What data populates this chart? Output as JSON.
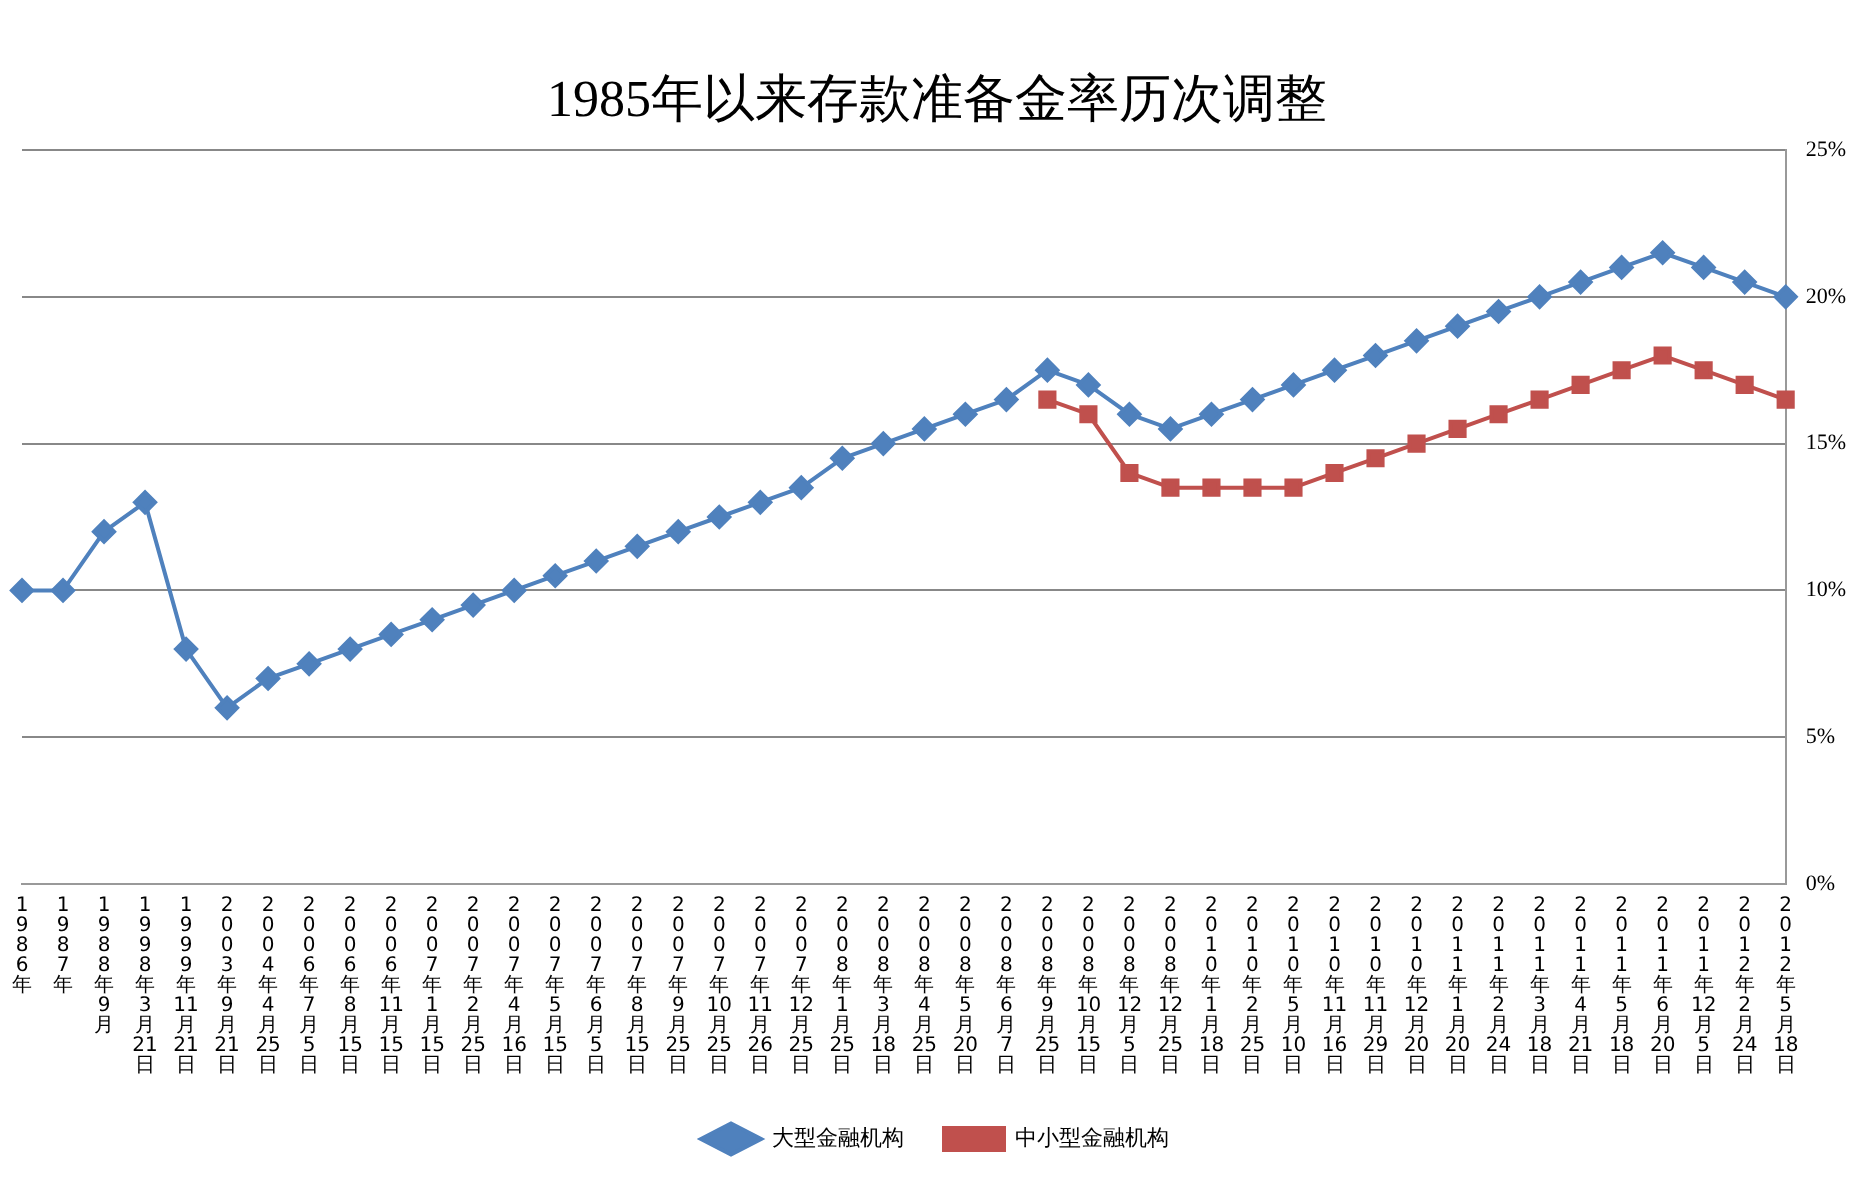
{
  "chart_data": {
    "type": "line",
    "title": "1985年以来存款准备金率历次调整",
    "categories": [
      "1986年",
      "1987年",
      "1988年9月",
      "1998年3月21日",
      "1999年11月21日",
      "2003年9月21日",
      "2004年4月25日",
      "2006年7月5日",
      "2006年8月15日",
      "2006年11月15日",
      "2007年1月15日",
      "2007年2月25日",
      "2007年4月16日",
      "2007年5月15日",
      "2007年6月5日",
      "2007年8月15日",
      "2007年9月25日",
      "2007年10月25日",
      "2007年11月26日",
      "2007年12月25日",
      "2008年1月25日",
      "2008年3月18日",
      "2008年4月25日",
      "2008年5月20日",
      "2008年6月7日",
      "2008年9月25日",
      "2008年10月15日",
      "2008年12月5日",
      "2008年12月25日",
      "2010年1月18日",
      "2010年2月25日",
      "2010年5月10日",
      "2010年11月16日",
      "2010年11月29日",
      "2010年12月20日",
      "2011年1月20日",
      "2011年2月24日",
      "2011年3月18日",
      "2011年4月21日",
      "2011年5月18日",
      "2011年6月20日",
      "2011年12月5日",
      "2012年2月24日",
      "2012年5月18日"
    ],
    "series": [
      {
        "name": "大型金融机构",
        "color": "#4f81bd",
        "marker": "diamond",
        "values": [
          10,
          10,
          12,
          13,
          8,
          6,
          7,
          7.5,
          8,
          8.5,
          9,
          9.5,
          10,
          10.5,
          11,
          11.5,
          12,
          12.5,
          13,
          13.5,
          14.5,
          15,
          15.5,
          16,
          16.5,
          17.5,
          17,
          16,
          15.5,
          16,
          16.5,
          17,
          17.5,
          18,
          18.5,
          19,
          19.5,
          20,
          20.5,
          21,
          21.5,
          21,
          20.5,
          20
        ]
      },
      {
        "name": "中小型金融机构",
        "color": "#c0504d",
        "marker": "square",
        "values": [
          null,
          null,
          null,
          null,
          null,
          null,
          null,
          null,
          null,
          null,
          null,
          null,
          null,
          null,
          null,
          null,
          null,
          null,
          null,
          null,
          null,
          null,
          null,
          null,
          null,
          16.5,
          16,
          14,
          13.5,
          13.5,
          13.5,
          13.5,
          14,
          14.5,
          15,
          15.5,
          16,
          16.5,
          17,
          17.5,
          18,
          17.5,
          17,
          16.5
        ]
      }
    ],
    "ylim": [
      0,
      25
    ],
    "yticks": [
      {
        "value": 0,
        "label": "0%"
      },
      {
        "value": 5,
        "label": "5%"
      },
      {
        "value": 10,
        "label": "10%"
      },
      {
        "value": 15,
        "label": "15%"
      },
      {
        "value": 20,
        "label": "20%"
      },
      {
        "value": 25,
        "label": "25%"
      }
    ],
    "grid": "y",
    "legend": "bottom"
  }
}
